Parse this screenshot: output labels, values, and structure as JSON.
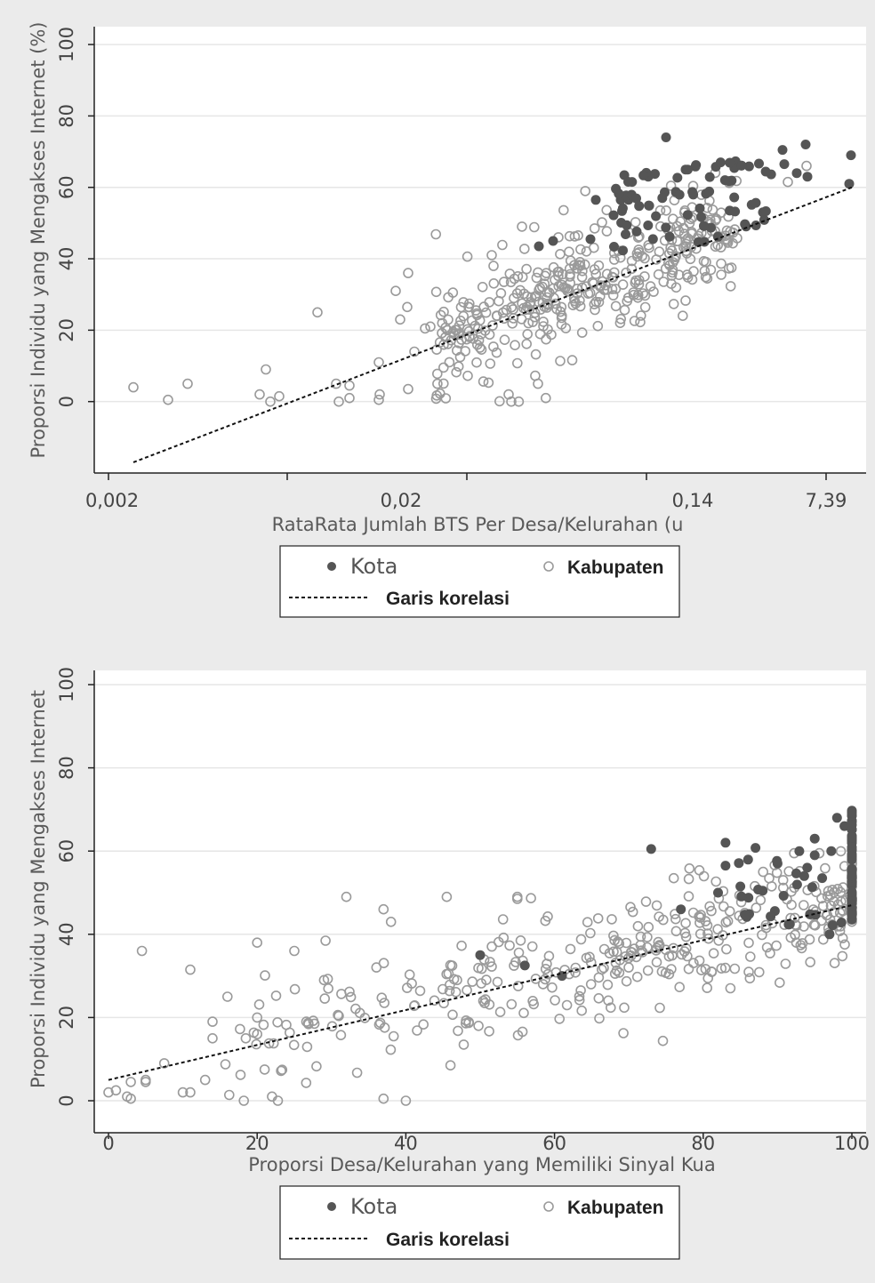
{
  "legend": {
    "kota": "Kota",
    "kabupaten": "Kabupaten",
    "correlation": "Garis korelasi"
  },
  "colors": {
    "kota": "#555555",
    "kabupaten_stroke": "#9a9a9a",
    "plot_bg": "#ffffff",
    "page_bg": "#ebebeb",
    "grid": "#e6e6e6"
  },
  "chart_data": [
    {
      "type": "scatter",
      "xlabel": "RataRata Jumlah BTS Per Desa/Kelurahan (u",
      "ylabel": "Proporsi Individu yang Mengakses Internet (%)",
      "x_scale": "log",
      "x_ticks": [
        "0,002",
        "0,02",
        "0,14",
        "7,39"
      ],
      "y_ticks": [
        "0",
        "20",
        "40",
        "60",
        "80",
        "100"
      ],
      "ylim": [
        -20,
        105
      ],
      "grid": true,
      "legend_position": "bottom",
      "series": [
        {
          "name": "Kota",
          "marker": "filled-circle",
          "count": 90
        },
        {
          "name": "Kabupaten",
          "marker": "hollow-circle",
          "count": 420
        }
      ],
      "trend_line": {
        "name": "Garis korelasi",
        "y_start": -17,
        "y_end": 60
      }
    },
    {
      "type": "scatter",
      "xlabel": "Proporsi Desa/Kelurahan yang Memiliki Sinyal Kua",
      "ylabel": "Proporsi Individu yang Mengakses Internet",
      "x_ticks": [
        "0",
        "20",
        "40",
        "60",
        "80",
        "100"
      ],
      "y_ticks": [
        "0",
        "20",
        "40",
        "60",
        "80",
        "100"
      ],
      "xlim": [
        -2,
        102
      ],
      "ylim": [
        -3,
        101
      ],
      "grid": true,
      "legend_position": "bottom",
      "series": [
        {
          "name": "Kota",
          "marker": "filled-circle",
          "count": 90
        },
        {
          "name": "Kabupaten",
          "marker": "hollow-circle",
          "count": 420
        }
      ],
      "trend_line": {
        "name": "Garis korelasi",
        "x": [
          0,
          100
        ],
        "y": [
          5,
          47
        ]
      }
    }
  ]
}
